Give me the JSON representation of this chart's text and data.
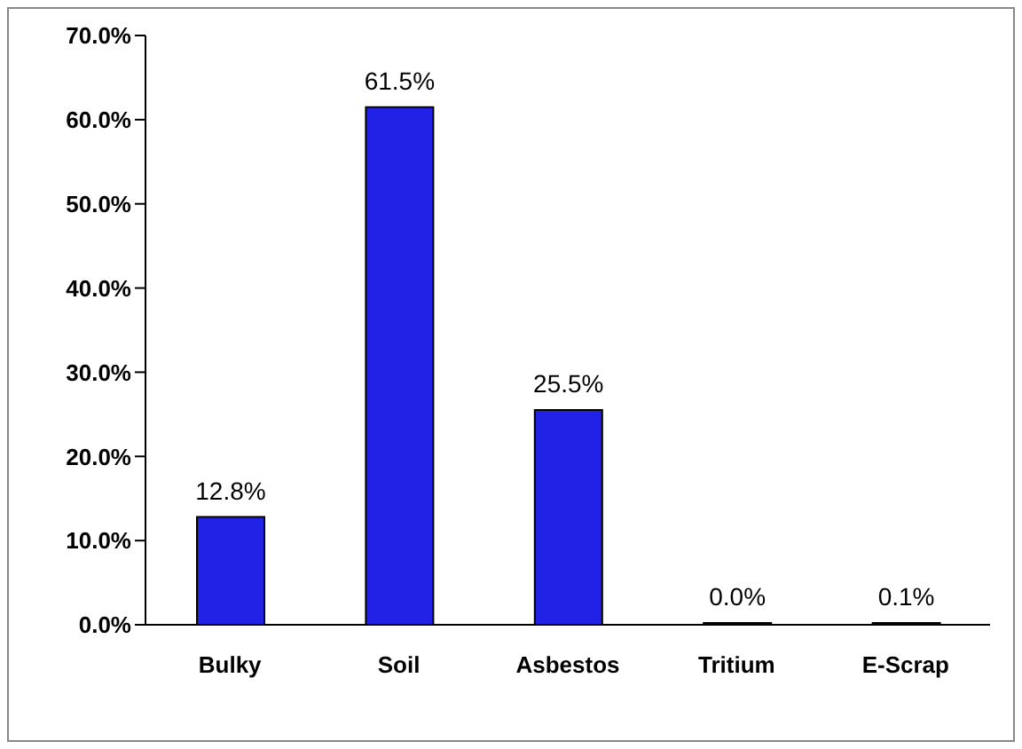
{
  "chart_data": {
    "type": "bar",
    "categories": [
      "Bulky",
      "Soil",
      "Asbestos",
      "Tritium",
      "E-Scrap"
    ],
    "values": [
      12.8,
      61.5,
      25.5,
      0.0,
      0.1
    ],
    "color": "#2222e6",
    "value_labels": [
      "12.8%",
      "61.5%",
      "25.5%",
      "0.0%",
      "0.1%"
    ],
    "ylim": [
      0,
      70
    ],
    "yticks": [
      {
        "value": 0,
        "label": "0.0%"
      },
      {
        "value": 10,
        "label": "10.0%"
      },
      {
        "value": 20,
        "label": "20.0%"
      },
      {
        "value": 30,
        "label": "30.0%"
      },
      {
        "value": 40,
        "label": "40.0%"
      },
      {
        "value": 50,
        "label": "50.0%"
      },
      {
        "value": 60,
        "label": "60.0%"
      },
      {
        "value": 70,
        "label": "70.0%"
      }
    ],
    "grid": false
  }
}
